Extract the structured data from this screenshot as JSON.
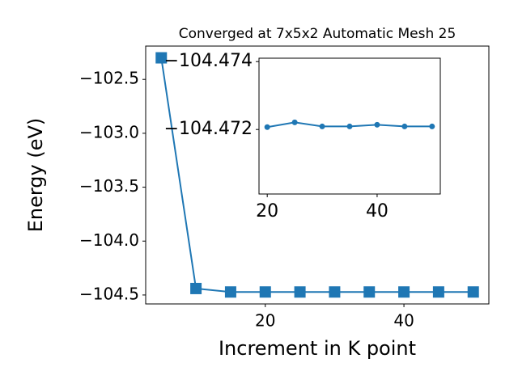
{
  "chart_data": [
    {
      "type": "line",
      "title": "Converged at 7x5x2 Automatic Mesh 25",
      "x_label": "Increment in K point",
      "y_label": "Energy (eV)",
      "x": [
        5,
        10,
        15,
        20,
        25,
        30,
        35,
        40,
        45,
        50
      ],
      "values": [
        -102.3,
        -104.44,
        -104.4721,
        -104.47207,
        -104.47221,
        -104.47209,
        -104.47209,
        -104.47214,
        -104.47209,
        -104.47209
      ],
      "color": "#1f77b4",
      "marker": "square",
      "xlim": [
        2.75,
        52.25
      ],
      "xticks": [
        20,
        40
      ],
      "ylim": [
        -104.583,
        -102.191
      ],
      "yticks": [
        {
          "value": -104.5,
          "label": "−104.5"
        },
        {
          "value": -104.0,
          "label": "−104.0"
        },
        {
          "value": -103.5,
          "label": "−103.5"
        },
        {
          "value": -103.0,
          "label": "−103.0"
        },
        {
          "value": -102.5,
          "label": "−102.5"
        }
      ]
    },
    {
      "type": "line",
      "x": [
        20,
        25,
        30,
        35,
        40,
        45,
        50
      ],
      "values": [
        -104.47207,
        -104.47221,
        -104.47209,
        -104.47209,
        -104.47214,
        -104.47209,
        -104.47209
      ],
      "color": "#1f77b4",
      "marker": "circle",
      "xlim": [
        18.5,
        51.5
      ],
      "xticks": [
        20,
        40
      ],
      "ylim": [
        -104.4701,
        -104.4741
      ],
      "yticks": [
        {
          "value": -104.474,
          "label": "−104.474"
        },
        {
          "value": -104.472,
          "label": "−104.472"
        }
      ]
    }
  ]
}
